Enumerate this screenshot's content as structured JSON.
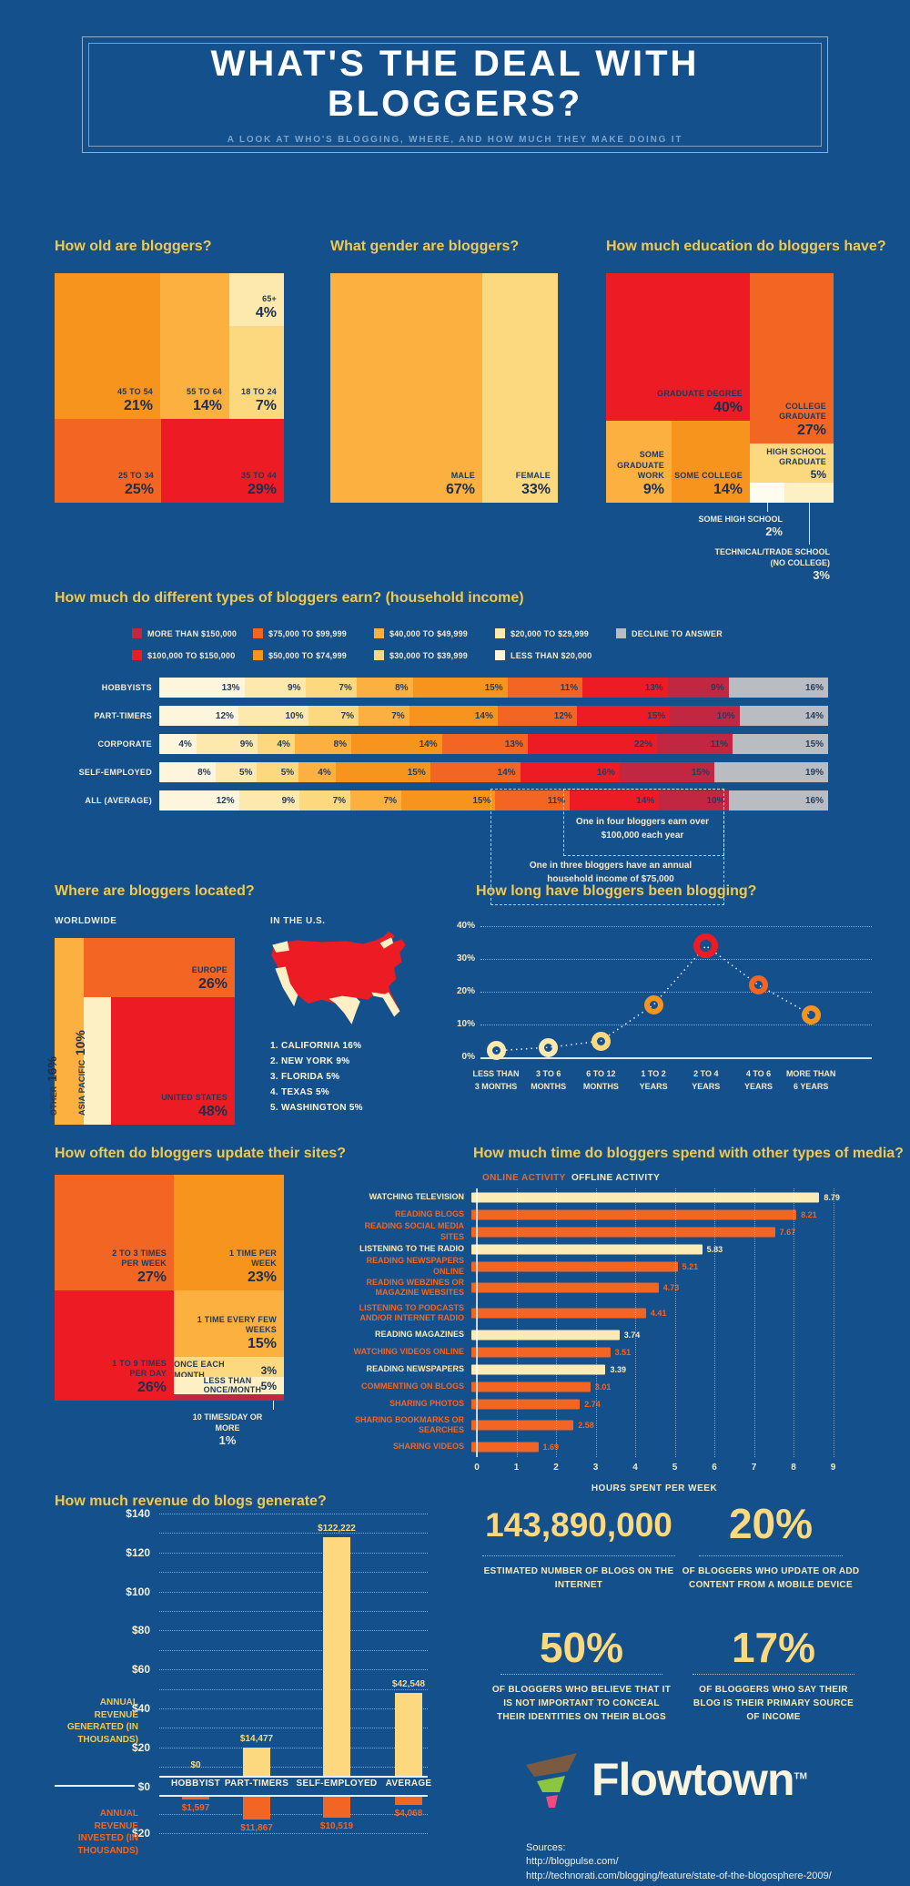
{
  "page": {
    "title_line1": "WHAT'S THE DEAL WITH",
    "title_line2": "BLOGGERS?",
    "subtitle": "A LOOK AT WHO'S BLOGGING, WHERE, AND HOW MUCH THEY MAKE DOING IT"
  },
  "colors": {
    "background": "#14508C",
    "heading": "#F2C94C",
    "red": "#ED1C24",
    "crimson": "#C22742",
    "orange_red": "#F26522",
    "orange": "#F7941D",
    "amber": "#FBB040",
    "gold": "#FCD97F",
    "pale_yellow": "#FDE9AE",
    "cream": "#FDF0C4",
    "near_white": "#FDF6DC",
    "gray": "#B9BDC1",
    "logo_brown": "#7A5B41",
    "logo_green": "#8CC63F",
    "logo_pink": "#EE4B80"
  },
  "age": {
    "heading": "How old are bloggers?",
    "blocks": [
      {
        "label": "45 TO 54",
        "pct": "21%"
      },
      {
        "label": "55 TO 64",
        "pct": "14%"
      },
      {
        "label": "65+",
        "pct": "4%"
      },
      {
        "label": "18 TO 24",
        "pct": "7%"
      },
      {
        "label": "25 TO 34",
        "pct": "25%"
      },
      {
        "label": "35 TO 44",
        "pct": "29%"
      }
    ]
  },
  "gender": {
    "heading": "What gender are bloggers?",
    "blocks": [
      {
        "label": "MALE",
        "pct": "67%"
      },
      {
        "label": "FEMALE",
        "pct": "33%"
      }
    ]
  },
  "education": {
    "heading": "How much education do bloggers have?",
    "blocks": [
      {
        "label": "GRADUATE DEGREE",
        "pct": "40%"
      },
      {
        "label": "COLLEGE GRADUATE",
        "pct": "27%"
      },
      {
        "label": "SOME GRADUATE WORK",
        "pct": "9%"
      },
      {
        "label": "SOME COLLEGE",
        "pct": "14%"
      },
      {
        "label": "HIGH SCHOOL GRADUATE",
        "pct": "5%"
      }
    ],
    "callouts": [
      {
        "label": "SOME HIGH SCHOOL",
        "pct": "2%"
      },
      {
        "label": "TECHNICAL/TRADE SCHOOL (NO COLLEGE)",
        "pct": "3%"
      }
    ]
  },
  "income": {
    "heading": "How much do different types of bloggers earn? (household income)",
    "legend_row1": [
      {
        "label": "MORE THAN $150,000",
        "color": "#C22742"
      },
      {
        "label": "$75,000 TO $99,999",
        "color": "#F26522"
      },
      {
        "label": "$40,000 TO $49,999",
        "color": "#FBB040"
      },
      {
        "label": "$20,000 TO $29,999",
        "color": "#FDE9AE"
      },
      {
        "label": "DECLINE TO ANSWER",
        "color": "#B9BDC1"
      }
    ],
    "legend_row2": [
      {
        "label": "$100,000 TO $150,000",
        "color": "#ED1C24"
      },
      {
        "label": "$50,000 TO $74,999",
        "color": "#F7941D"
      },
      {
        "label": "$30,000 TO $39,999",
        "color": "#FCD97F"
      },
      {
        "label": "LESS THAN $20,000",
        "color": "#FDF6DC"
      }
    ],
    "segment_colors": [
      "#FDF6DC",
      "#FDE9AE",
      "#FCD97F",
      "#FBB040",
      "#F7941D",
      "#F26522",
      "#ED1C24",
      "#C22742",
      "#B9BDC1"
    ],
    "rows": [
      {
        "label": "HOBBYISTS",
        "values": [
          13,
          9,
          7,
          8,
          15,
          11,
          13,
          9,
          16
        ]
      },
      {
        "label": "PART-TIMERS",
        "values": [
          12,
          10,
          7,
          7,
          14,
          12,
          15,
          10,
          14
        ]
      },
      {
        "label": "CORPORATE",
        "values": [
          4,
          9,
          4,
          8,
          14,
          13,
          22,
          11,
          15
        ]
      },
      {
        "label": "SELF-EMPLOYED",
        "values": [
          8,
          5,
          5,
          4,
          15,
          14,
          16,
          15,
          19
        ]
      },
      {
        "label": "ALL (AVERAGE)",
        "values": [
          12,
          9,
          7,
          7,
          15,
          11,
          14,
          10,
          16
        ]
      }
    ],
    "annotation1": "One in four bloggers earn over $100,000 each year",
    "annotation2": "One in three bloggers have an annual household income of $75,000"
  },
  "location": {
    "heading": "Where are bloggers located?",
    "worldwide_label": "WORLDWIDE",
    "us_label": "IN THE U.S.",
    "worldwide": [
      {
        "label": "EUROPE",
        "pct": "26%"
      },
      {
        "label": "UNITED STATES",
        "pct": "48%"
      },
      {
        "label": "OTHER",
        "pct": "16%"
      },
      {
        "label": "ASIA PACIFIC",
        "pct": "10%"
      }
    ],
    "us_states": [
      {
        "rank": "1.",
        "name": "CALIFORNIA",
        "pct": "16%"
      },
      {
        "rank": "2.",
        "name": "NEW YORK",
        "pct": "9%"
      },
      {
        "rank": "3.",
        "name": "FLORIDA",
        "pct": "5%"
      },
      {
        "rank": "4.",
        "name": "TEXAS",
        "pct": "5%"
      },
      {
        "rank": "5.",
        "name": "WASHINGTON",
        "pct": "5%"
      }
    ]
  },
  "tenure": {
    "heading": "How long have bloggers been blogging?",
    "y_ticks": [
      "40%",
      "30%",
      "20%",
      "10%",
      "0%"
    ],
    "categories": [
      "LESS THAN|3 MONTHS",
      "3 TO 6|MONTHS",
      "6 TO 12|MONTHS",
      "1 TO 2|YEARS",
      "2 TO 4|YEARS",
      "4 TO 6|YEARS",
      "MORE THAN|6 YEARS"
    ],
    "values": [
      2,
      3,
      5,
      16,
      34,
      22,
      13
    ],
    "point_colors": [
      "#FDE9AE",
      "#FDE9AE",
      "#FCD97F",
      "#F7941D",
      "#ED1C24",
      "#F26522",
      "#F7941D"
    ]
  },
  "update_freq": {
    "heading": "How often do bloggers update their sites?",
    "blocks": [
      {
        "label": "2 TO 3 TIMES PER WEEK",
        "pct": "27%"
      },
      {
        "label": "1 TIME PER WEEK",
        "pct": "23%"
      },
      {
        "label": "1 TO 9 TIMES PER DAY",
        "pct": "26%"
      },
      {
        "label": "1 TIME EVERY FEW WEEKS",
        "pct": "15%"
      },
      {
        "label": "ONCE EACH MONTH",
        "pct": "3%"
      },
      {
        "label": "LESS THAN ONCE/MONTH",
        "pct": "5%"
      }
    ],
    "callout": {
      "label": "10 TIMES/DAY OR MORE",
      "pct": "1%"
    }
  },
  "media": {
    "heading": "How much time do bloggers spend with other types of media?",
    "legend_online": "ONLINE ACTIVITY",
    "legend_offline": "OFFLINE ACTIVITY",
    "items": [
      {
        "label": "WATCHING TELEVISION",
        "value": 8.79,
        "type": "offline",
        "two_line": false
      },
      {
        "label": "READING BLOGS",
        "value": 8.21,
        "type": "online",
        "two_line": false
      },
      {
        "label": "READING SOCIAL MEDIA SITES",
        "value": 7.67,
        "type": "online",
        "two_line": false
      },
      {
        "label": "LISTENING TO THE RADIO",
        "value": 5.83,
        "type": "offline",
        "two_line": false
      },
      {
        "label": "READING NEWSPAPERS ONLINE",
        "value": 5.21,
        "type": "online",
        "two_line": false
      },
      {
        "label": "READING WEBZINES OR MAGAZINE WEBSITES",
        "value": 4.73,
        "type": "online",
        "two_line": true
      },
      {
        "label": "LISTENING TO PODCASTS AND/OR INTERNET RADIO",
        "value": 4.41,
        "type": "online",
        "two_line": true
      },
      {
        "label": "READING MAGAZINES",
        "value": 3.74,
        "type": "offline",
        "two_line": false
      },
      {
        "label": "WATCHING VIDEOS ONLINE",
        "value": 3.51,
        "type": "online",
        "two_line": false
      },
      {
        "label": "READING NEWSPAPERS",
        "value": 3.39,
        "type": "offline",
        "two_line": false
      },
      {
        "label": "COMMENTING ON BLOGS",
        "value": 3.01,
        "type": "online",
        "two_line": false
      },
      {
        "label": "SHARING PHOTOS",
        "value": 2.74,
        "type": "online",
        "two_line": false
      },
      {
        "label": "SHARING BOOKMARKS OR SEARCHES",
        "value": 2.58,
        "type": "online",
        "two_line": true
      },
      {
        "label": "SHARING VIDEOS",
        "value": 1.69,
        "type": "online",
        "two_line": false
      }
    ],
    "x_ticks": [
      "0",
      "1",
      "2",
      "3",
      "4",
      "5",
      "6",
      "7",
      "8",
      "9"
    ],
    "x_label": "HOURS SPENT PER WEEK",
    "x_max": 9
  },
  "revenue": {
    "heading": "How much revenue do blogs generate?",
    "y_ticks": [
      "$140",
      "$120",
      "$100",
      "$80",
      "$60",
      "$40",
      "$20",
      "$0"
    ],
    "invested_tick": "$20",
    "categories": [
      "HOBBYIST",
      "PART-TIMERS",
      "SELF-EMPLOYED",
      "AVERAGE"
    ],
    "generated": [
      {
        "label": "$0",
        "value": 0
      },
      {
        "label": "$14,477",
        "value": 14.477
      },
      {
        "label": "$122,222",
        "value": 122.222
      },
      {
        "label": "$42,548",
        "value": 42.548
      }
    ],
    "invested": [
      {
        "label": "$1,597",
        "value": 1.597
      },
      {
        "label": "$11,867",
        "value": 11.867
      },
      {
        "label": "$10,519",
        "value": 10.519
      },
      {
        "label": "$4,068",
        "value": 4.068
      }
    ],
    "left_label_generated": "ANNUAL REVENUE GENERATED (IN THOUSANDS)",
    "left_label_invested": "ANNUAL REVENUE INVESTED (IN THOUSANDS)"
  },
  "stats": [
    {
      "value": "143,890,000",
      "caption": "ESTIMATED NUMBER OF BLOGS ON THE INTERNET"
    },
    {
      "value": "20%",
      "caption": "OF BLOGGERS WHO UPDATE OR ADD CONTENT FROM A MOBILE DEVICE"
    },
    {
      "value": "50%",
      "caption": "OF BLOGGERS WHO BELIEVE THAT IT IS NOT IMPORTANT TO CONCEAL THEIR IDENTITIES ON THEIR BLOGS"
    },
    {
      "value": "17%",
      "caption": "OF BLOGGERS WHO SAY THEIR BLOG IS THEIR PRIMARY SOURCE OF INCOME"
    }
  ],
  "footer": {
    "brand": "Flowtown",
    "tm": "TM",
    "sources_label": "Sources:",
    "sources": [
      "http://blogpulse.com/",
      "http://technorati.com/blogging/feature/state-of-the-blogosphere-2009/"
    ]
  },
  "chart_data": [
    {
      "type": "pie",
      "title": "How old are bloggers?",
      "categories": [
        "18 TO 24",
        "25 TO 34",
        "35 TO 44",
        "45 TO 54",
        "55 TO 64",
        "65+"
      ],
      "values": [
        7,
        25,
        29,
        21,
        14,
        4
      ]
    },
    {
      "type": "pie",
      "title": "What gender are bloggers?",
      "categories": [
        "MALE",
        "FEMALE"
      ],
      "values": [
        67,
        33
      ]
    },
    {
      "type": "pie",
      "title": "How much education do bloggers have?",
      "categories": [
        "GRADUATE DEGREE",
        "COLLEGE GRADUATE",
        "SOME COLLEGE",
        "SOME GRADUATE WORK",
        "HIGH SCHOOL GRADUATE",
        "TECHNICAL/TRADE SCHOOL (NO COLLEGE)",
        "SOME HIGH SCHOOL"
      ],
      "values": [
        40,
        27,
        14,
        9,
        5,
        3,
        2
      ]
    },
    {
      "type": "bar",
      "subtype": "stacked-horizontal",
      "title": "How much do different types of bloggers earn? (household income)",
      "categories": [
        "HOBBYISTS",
        "PART-TIMERS",
        "CORPORATE",
        "SELF-EMPLOYED",
        "ALL (AVERAGE)"
      ],
      "series": [
        {
          "name": "LESS THAN $20,000",
          "values": [
            13,
            12,
            4,
            8,
            12
          ]
        },
        {
          "name": "$20,000 TO $29,999",
          "values": [
            9,
            10,
            9,
            5,
            9
          ]
        },
        {
          "name": "$30,000 TO $39,999",
          "values": [
            7,
            7,
            4,
            5,
            7
          ]
        },
        {
          "name": "$40,000 TO $49,999",
          "values": [
            8,
            7,
            8,
            4,
            7
          ]
        },
        {
          "name": "$50,000 TO $74,999",
          "values": [
            15,
            14,
            14,
            15,
            15
          ]
        },
        {
          "name": "$75,000 TO $99,999",
          "values": [
            11,
            12,
            13,
            14,
            11
          ]
        },
        {
          "name": "$100,000 TO $150,000",
          "values": [
            13,
            15,
            22,
            16,
            14
          ]
        },
        {
          "name": "MORE THAN $150,000",
          "values": [
            9,
            10,
            11,
            15,
            10
          ]
        },
        {
          "name": "DECLINE TO ANSWER",
          "values": [
            16,
            14,
            15,
            19,
            16
          ]
        }
      ],
      "annotations": [
        "One in four bloggers earn over $100,000 each year",
        "One in three bloggers have an annual household income of $75,000"
      ]
    },
    {
      "type": "pie",
      "title": "Where are bloggers located? WORLDWIDE",
      "categories": [
        "UNITED STATES",
        "EUROPE",
        "OTHER",
        "ASIA PACIFIC"
      ],
      "values": [
        48,
        26,
        16,
        10
      ]
    },
    {
      "type": "table",
      "title": "Where are bloggers located? IN THE U.S.",
      "categories": [
        "CALIFORNIA",
        "NEW YORK",
        "FLORIDA",
        "TEXAS",
        "WASHINGTON"
      ],
      "values": [
        16,
        9,
        5,
        5,
        5
      ]
    },
    {
      "type": "line",
      "title": "How long have bloggers been blogging?",
      "categories": [
        "LESS THAN 3 MONTHS",
        "3 TO 6 MONTHS",
        "6 TO 12 MONTHS",
        "1 TO 2 YEARS",
        "2 TO 4 YEARS",
        "4 TO 6 YEARS",
        "MORE THAN 6 YEARS"
      ],
      "values": [
        2,
        3,
        5,
        16,
        34,
        22,
        13
      ],
      "ylabel": "% of bloggers",
      "ylim": [
        0,
        40
      ],
      "grid": true
    },
    {
      "type": "pie",
      "title": "How often do bloggers update their sites?",
      "categories": [
        "2 TO 3 TIMES PER WEEK",
        "1 TO 9 TIMES PER DAY",
        "1 TIME PER WEEK",
        "1 TIME EVERY FEW WEEKS",
        "LESS THAN ONCE/MONTH",
        "ONCE EACH MONTH",
        "10 TIMES/DAY OR MORE"
      ],
      "values": [
        27,
        26,
        23,
        15,
        5,
        3,
        1
      ]
    },
    {
      "type": "bar",
      "subtype": "horizontal",
      "title": "How much time do bloggers spend with other types of media?",
      "xlabel": "HOURS SPENT PER WEEK",
      "xlim": [
        0,
        9
      ],
      "categories": [
        "WATCHING TELEVISION",
        "READING BLOGS",
        "READING SOCIAL MEDIA SITES",
        "LISTENING TO THE RADIO",
        "READING NEWSPAPERS ONLINE",
        "READING WEBZINES OR MAGAZINE WEBSITES",
        "LISTENING TO PODCASTS AND/OR INTERNET RADIO",
        "READING MAGAZINES",
        "WATCHING VIDEOS ONLINE",
        "READING NEWSPAPERS",
        "COMMENTING ON BLOGS",
        "SHARING PHOTOS",
        "SHARING BOOKMARKS OR SEARCHES",
        "SHARING VIDEOS"
      ],
      "values": [
        8.79,
        8.21,
        7.67,
        5.83,
        5.21,
        4.73,
        4.41,
        3.74,
        3.51,
        3.39,
        3.01,
        2.74,
        2.58,
        1.69
      ],
      "legend": [
        "ONLINE ACTIVITY",
        "OFFLINE ACTIVITY"
      ],
      "activity_type": [
        "offline",
        "online",
        "online",
        "offline",
        "online",
        "online",
        "online",
        "offline",
        "online",
        "offline",
        "online",
        "online",
        "online",
        "online"
      ]
    },
    {
      "type": "bar",
      "title": "How much revenue do blogs generate?",
      "categories": [
        "HOBBYIST",
        "PART-TIMERS",
        "SELF-EMPLOYED",
        "AVERAGE"
      ],
      "series": [
        {
          "name": "ANNUAL REVENUE GENERATED (IN THOUSANDS)",
          "values": [
            0,
            14477,
            122222,
            42548
          ]
        },
        {
          "name": "ANNUAL REVENUE INVESTED (IN THOUSANDS)",
          "values": [
            1597,
            11867,
            10519,
            4068
          ]
        }
      ]
    }
  ]
}
